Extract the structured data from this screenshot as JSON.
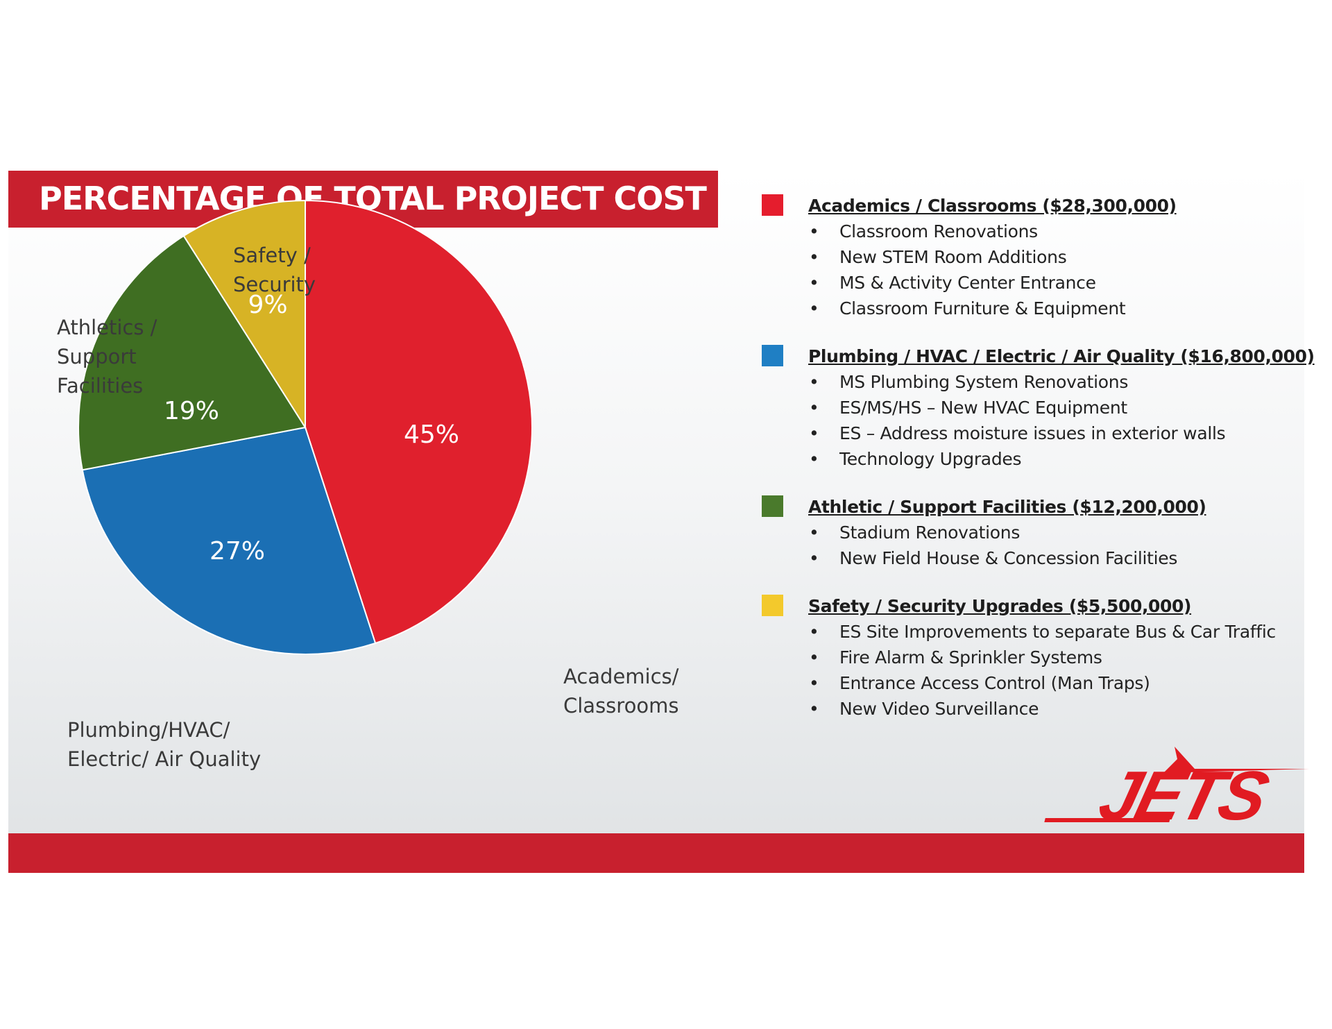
{
  "slide": {
    "title": "PERCENTAGE OF TOTAL PROJECT COST",
    "logo_text": "JETS",
    "colors": {
      "banner": "#c8202e",
      "academics": "#e0202d",
      "plumbing": "#1b6fb4",
      "athletics": "#3f6e22",
      "safety": "#d7b325"
    }
  },
  "chart_data": {
    "type": "pie",
    "title": "PERCENTAGE OF TOTAL PROJECT COST",
    "slices": [
      {
        "label": "Academics/ Classrooms",
        "label_lines": [
          "Academics/",
          "Classrooms"
        ],
        "value": 45,
        "value_label": "45%",
        "color": "#e0202d"
      },
      {
        "label": "Plumbing/HVAC/ Electric/ Air Quality",
        "label_lines": [
          "Plumbing/HVAC/",
          "Electric/ Air Quality"
        ],
        "value": 27,
        "value_label": "27%",
        "color": "#1b6fb4"
      },
      {
        "label": "Athletics / Support Facilities",
        "label_lines": [
          "Athletics /",
          "Support",
          "Facilities"
        ],
        "value": 19,
        "value_label": "19%",
        "color": "#3f6e22"
      },
      {
        "label": "Safety / Security",
        "label_lines": [
          "Safety /",
          "Security"
        ],
        "value": 9,
        "value_label": "9%",
        "color": "#d7b325"
      }
    ],
    "legend_position": "right"
  },
  "legend": [
    {
      "heading": "Academics / Classrooms ($28,300,000)",
      "color": "#e51d2d",
      "items": [
        "Classroom Renovations",
        "New STEM Room Additions",
        "MS & Activity Center Entrance",
        "Classroom Furniture & Equipment"
      ]
    },
    {
      "heading": "Plumbing / HVAC / Electric / Air Quality ($16,800,000)",
      "color": "#1f7fc4",
      "items": [
        "MS Plumbing System Renovations",
        "ES/MS/HS – New HVAC Equipment",
        "ES – Address moisture issues in exterior walls",
        "Technology Upgrades"
      ]
    },
    {
      "heading": "Athletic / Support Facilities ($12,200,000)",
      "color": "#4a7a2c",
      "items": [
        "Stadium Renovations",
        "New Field House & Concession Facilities"
      ]
    },
    {
      "heading": "Safety / Security Upgrades ($5,500,000)",
      "color": "#f3c92c",
      "items": [
        "ES Site Improvements to separate Bus & Car Traffic",
        "Fire Alarm & Sprinkler Systems",
        "Entrance Access Control (Man Traps)",
        "New Video Surveillance"
      ]
    }
  ]
}
